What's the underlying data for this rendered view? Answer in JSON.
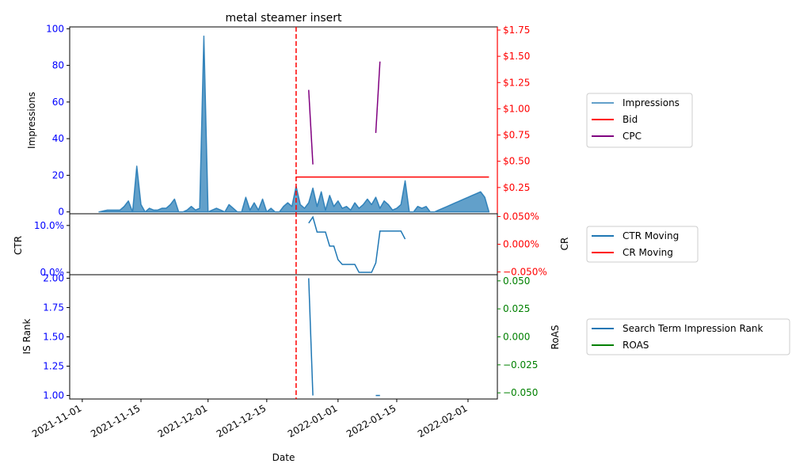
{
  "chart_data": {
    "type": "line",
    "title": "metal steamer insert",
    "xlabel": "Date",
    "x_ticks": [
      "2021-11-01",
      "2021-11-15",
      "2021-12-01",
      "2021-12-15",
      "2022-01-01",
      "2022-01-15",
      "2022-02-01"
    ],
    "event_marker_date": "2021-12-22",
    "colors": {
      "impressions": "#1f77b4",
      "bid": "#ff0000",
      "cpc": "#800080",
      "ctr": "#1f77b4",
      "cr": "#ff0000",
      "rank": "#1f77b4",
      "roas": "#008000",
      "left_axis": "#0000ff",
      "cr_axis": "#ff0000",
      "roas_axis": "#008000"
    },
    "panels": [
      {
        "id": "top",
        "left_axis": {
          "label": "Impressions",
          "ticks": [
            "0",
            "20",
            "40",
            "60",
            "80",
            "100"
          ],
          "range": [
            -1,
            101
          ]
        },
        "right_axis": {
          "label": "",
          "ticks": [
            "$0.25",
            "$0.50",
            "$0.75",
            "$1.00",
            "$1.25",
            "$1.50",
            "$1.75"
          ],
          "range": [
            0.0,
            1.78
          ]
        },
        "series": [
          {
            "key": "impressions",
            "name": "Impressions",
            "axis": "left",
            "style": "area",
            "points": [
              [
                "2021-11-05",
                0
              ],
              [
                "2021-11-06",
                0.5
              ],
              [
                "2021-11-07",
                1
              ],
              [
                "2021-11-08",
                1
              ],
              [
                "2021-11-09",
                1
              ],
              [
                "2021-11-10",
                1
              ],
              [
                "2021-11-11",
                3
              ],
              [
                "2021-11-12",
                6
              ],
              [
                "2021-11-13",
                0
              ],
              [
                "2021-11-14",
                25
              ],
              [
                "2021-11-15",
                4
              ],
              [
                "2021-11-16",
                0
              ],
              [
                "2021-11-17",
                2
              ],
              [
                "2021-11-18",
                1
              ],
              [
                "2021-11-19",
                1
              ],
              [
                "2021-11-20",
                2
              ],
              [
                "2021-11-21",
                2
              ],
              [
                "2021-11-22",
                4
              ],
              [
                "2021-11-23",
                7
              ],
              [
                "2021-11-24",
                0
              ],
              [
                "2021-11-25",
                0
              ],
              [
                "2021-11-26",
                1
              ],
              [
                "2021-11-27",
                3
              ],
              [
                "2021-11-28",
                1
              ],
              [
                "2021-11-29",
                2
              ],
              [
                "2021-11-30",
                96
              ],
              [
                "2021-12-01",
                0
              ],
              [
                "2021-12-02",
                1
              ],
              [
                "2021-12-03",
                2
              ],
              [
                "2021-12-04",
                1
              ],
              [
                "2021-12-05",
                0
              ],
              [
                "2021-12-06",
                4
              ],
              [
                "2021-12-07",
                2
              ],
              [
                "2021-12-08",
                0
              ],
              [
                "2021-12-09",
                0
              ],
              [
                "2021-12-10",
                8
              ],
              [
                "2021-12-11",
                1
              ],
              [
                "2021-12-12",
                5
              ],
              [
                "2021-12-13",
                1
              ],
              [
                "2021-12-14",
                7
              ],
              [
                "2021-12-15",
                0
              ],
              [
                "2021-12-16",
                2
              ],
              [
                "2021-12-17",
                0
              ],
              [
                "2021-12-18",
                0
              ],
              [
                "2021-12-19",
                3
              ],
              [
                "2021-12-20",
                5
              ],
              [
                "2021-12-21",
                3
              ],
              [
                "2021-12-22",
                14
              ],
              [
                "2021-12-23",
                4
              ],
              [
                "2021-12-24",
                2
              ],
              [
                "2021-12-25",
                5
              ],
              [
                "2021-12-26",
                13
              ],
              [
                "2021-12-27",
                3
              ],
              [
                "2021-12-28",
                11
              ],
              [
                "2021-12-29",
                1
              ],
              [
                "2021-12-30",
                9
              ],
              [
                "2021-12-31",
                3
              ],
              [
                "2022-01-01",
                6
              ],
              [
                "2022-01-02",
                2
              ],
              [
                "2022-01-03",
                3
              ],
              [
                "2022-01-04",
                1
              ],
              [
                "2022-01-05",
                5
              ],
              [
                "2022-01-06",
                2
              ],
              [
                "2022-01-07",
                4
              ],
              [
                "2022-01-08",
                7
              ],
              [
                "2022-01-09",
                4
              ],
              [
                "2022-01-10",
                8
              ],
              [
                "2022-01-11",
                2
              ],
              [
                "2022-01-12",
                6
              ],
              [
                "2022-01-13",
                4
              ],
              [
                "2022-01-14",
                1
              ],
              [
                "2022-01-15",
                2
              ],
              [
                "2022-01-16",
                4
              ],
              [
                "2022-01-17",
                17
              ],
              [
                "2022-01-18",
                0
              ],
              [
                "2022-01-19",
                0
              ],
              [
                "2022-01-20",
                3
              ],
              [
                "2022-01-21",
                2
              ],
              [
                "2022-01-22",
                3
              ],
              [
                "2022-01-23",
                0
              ],
              [
                "2022-01-24",
                0
              ],
              [
                "2022-01-25",
                1
              ],
              [
                "2022-01-26",
                2
              ],
              [
                "2022-01-27",
                3
              ],
              [
                "2022-01-28",
                4
              ],
              [
                "2022-01-29",
                5
              ],
              [
                "2022-01-30",
                6
              ],
              [
                "2022-01-31",
                7
              ],
              [
                "2022-02-01",
                8
              ],
              [
                "2022-02-02",
                9
              ],
              [
                "2022-02-03",
                10
              ],
              [
                "2022-02-04",
                11
              ],
              [
                "2022-02-05",
                8
              ],
              [
                "2022-02-06",
                0
              ]
            ]
          },
          {
            "key": "bid",
            "name": "Bid",
            "axis": "right",
            "style": "line",
            "points": [
              [
                "2021-12-22",
                0.35
              ],
              [
                "2022-02-06",
                0.35
              ]
            ]
          },
          {
            "key": "cpc",
            "name": "CPC",
            "axis": "right",
            "style": "segments",
            "segments": [
              [
                [
                  "2021-12-25",
                  1.18
                ],
                [
                  "2021-12-26",
                  0.47
                ]
              ],
              [
                [
                  "2022-01-10",
                  0.77
                ],
                [
                  "2022-01-11",
                  1.45
                ]
              ]
            ]
          }
        ]
      },
      {
        "id": "middle",
        "left_axis": {
          "label": "CTR",
          "ticks": [
            "0.0%",
            "10.0%"
          ],
          "range": [
            -0.5,
            12.5
          ]
        },
        "right_axis": {
          "label": "CR",
          "ticks": [
            "0.050%",
            "0.000%",
            "−0.050%"
          ],
          "range": [
            -0.055,
            0.055
          ]
        },
        "series": [
          {
            "key": "ctr",
            "name": "CTR Moving",
            "axis": "left",
            "style": "line",
            "points": [
              [
                "2021-12-25",
                10.5
              ],
              [
                "2021-12-26",
                11.8
              ],
              [
                "2021-12-27",
                8.6
              ],
              [
                "2021-12-28",
                8.6
              ],
              [
                "2021-12-29",
                8.6
              ],
              [
                "2021-12-30",
                5.6
              ],
              [
                "2021-12-31",
                5.6
              ],
              [
                "2022-01-01",
                2.7
              ],
              [
                "2022-01-02",
                1.7
              ],
              [
                "2022-01-03",
                1.7
              ],
              [
                "2022-01-04",
                1.7
              ],
              [
                "2022-01-05",
                1.7
              ],
              [
                "2022-01-06",
                0
              ],
              [
                "2022-01-07",
                0
              ],
              [
                "2022-01-08",
                0
              ],
              [
                "2022-01-09",
                0
              ],
              [
                "2022-01-10",
                2.0
              ],
              [
                "2022-01-11",
                8.8
              ],
              [
                "2022-01-12",
                8.8
              ],
              [
                "2022-01-13",
                8.8
              ],
              [
                "2022-01-14",
                8.8
              ],
              [
                "2022-01-15",
                8.8
              ],
              [
                "2022-01-16",
                8.8
              ],
              [
                "2022-01-17",
                7.1
              ]
            ]
          },
          {
            "key": "cr",
            "name": "CR Moving",
            "axis": "right",
            "style": "line",
            "points": []
          }
        ]
      },
      {
        "id": "bottom",
        "left_axis": {
          "label": "IS Rank",
          "ticks": [
            "1.00",
            "1.25",
            "1.50",
            "1.75",
            "2.00"
          ],
          "range": [
            0.97,
            2.03
          ]
        },
        "right_axis": {
          "label": "RoAS",
          "ticks": [
            "0.050",
            "0.025",
            "0.000",
            "−0.025",
            "−0.050"
          ],
          "range": [
            -0.0555,
            0.0555
          ]
        },
        "series": [
          {
            "key": "rank",
            "name": "Search Term Impression Rank",
            "axis": "left",
            "style": "segments",
            "segments": [
              [
                [
                  "2021-12-25",
                  2.0
                ],
                [
                  "2021-12-26",
                  1.0
                ]
              ],
              [
                [
                  "2022-01-10",
                  1.0
                ],
                [
                  "2022-01-11",
                  1.0
                ]
              ]
            ]
          },
          {
            "key": "roas",
            "name": "ROAS",
            "axis": "right",
            "style": "line",
            "points": []
          }
        ]
      }
    ],
    "legends": [
      {
        "panel": "top",
        "placement": "right",
        "entries": [
          "Impressions",
          "Bid",
          "CPC"
        ]
      },
      {
        "panel": "middle",
        "placement": "right",
        "entries": [
          "CTR Moving",
          "CR Moving"
        ]
      },
      {
        "panel": "bottom",
        "placement": "right",
        "entries": [
          "Search Term Impression Rank",
          "ROAS"
        ]
      }
    ]
  }
}
